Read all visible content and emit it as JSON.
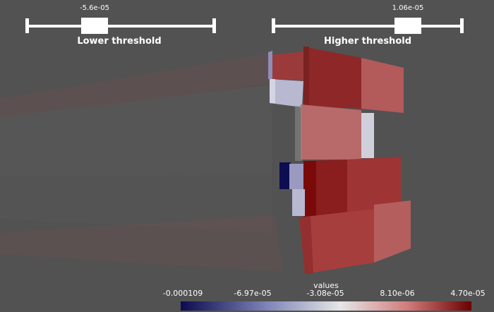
{
  "lower_threshold": {
    "value_label": "-5.6e-05",
    "label": "Lower threshold",
    "fraction": 0.34
  },
  "higher_threshold": {
    "value_label": "1.06e-05",
    "label": "Higher threshold",
    "fraction": 0.72
  },
  "colorbar": {
    "title": "values",
    "ticks": [
      "-0.000109",
      "-6.97e-05",
      "-3.08e-05",
      "8.10e-06",
      "4.70e-05"
    ],
    "colors": {
      "low": "#0b0b4f",
      "mid_low": "#7f86b8",
      "center": "#e6e6e6",
      "mid_high": "#d27c7c",
      "high": "#6b0000"
    }
  },
  "colors": {
    "background": "#525252",
    "block_dark_red": "#8f2a2a",
    "block_red": "#a33c3c",
    "block_light_red": "#b86565",
    "block_pale": "#cfc9d6",
    "block_blue": "#0d0d52"
  }
}
